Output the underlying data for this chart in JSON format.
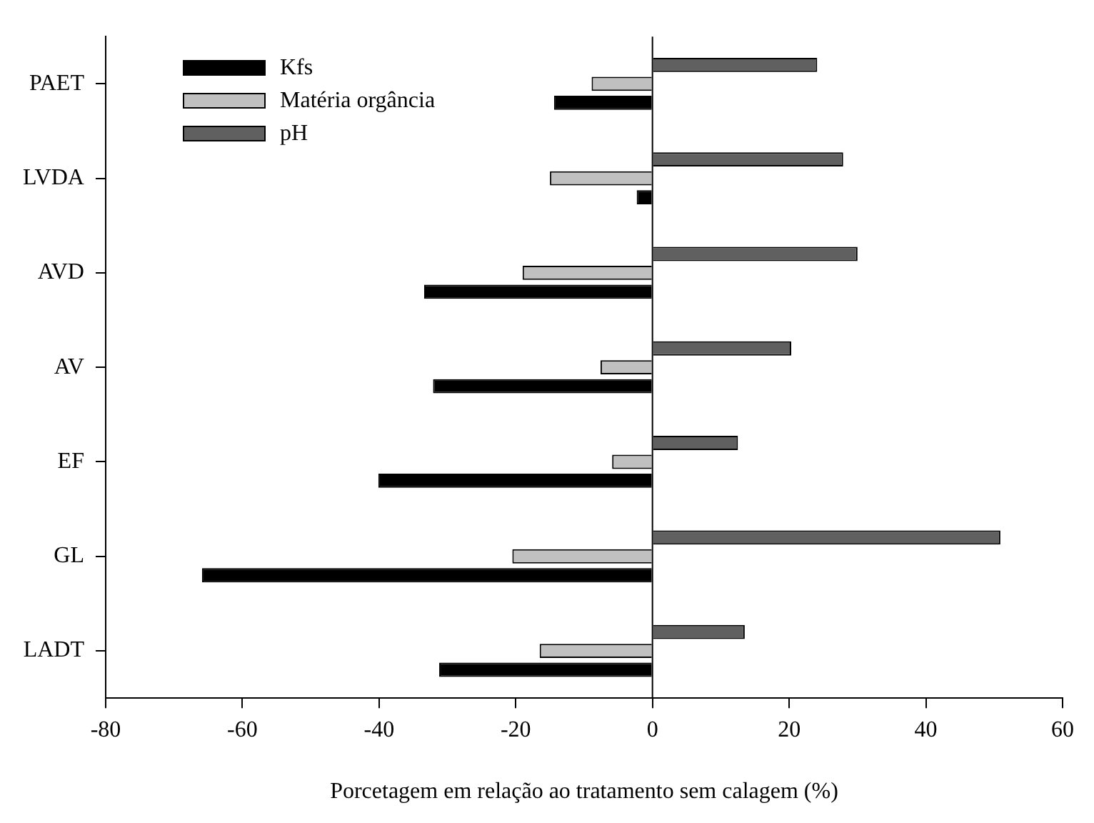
{
  "chart_data": {
    "type": "bar",
    "orientation": "horizontal",
    "xlabel": "Porcetagem em relação ao tratamento sem calagem (%)",
    "categories": [
      "PAET",
      "LVDA",
      "AVD",
      "AV",
      "EF",
      "GL",
      "LADT"
    ],
    "series": [
      {
        "name": "Kfs",
        "color": "#000000",
        "values": [
          -14.4,
          -2.3,
          -33.4,
          -32.1,
          -40.1,
          -65.9,
          -31.2
        ]
      },
      {
        "name": "Matéria orgância",
        "color": "#c0c0c0",
        "values": [
          -8.9,
          -15,
          -19,
          -7.6,
          -5.9,
          -20.5,
          -16.5
        ]
      },
      {
        "name": "pH",
        "color": "#606060",
        "values": [
          24.1,
          27.9,
          30,
          20.3,
          12.5,
          50.9,
          13.5
        ]
      }
    ],
    "xlim": [
      -80,
      60
    ],
    "xticks": [
      -80,
      -60,
      -40,
      -20,
      0,
      20,
      40,
      60
    ],
    "ref_lines": [
      {
        "axis": "x",
        "value": 0,
        "color": "#000000"
      }
    ],
    "grid": false,
    "legend": "top left"
  }
}
